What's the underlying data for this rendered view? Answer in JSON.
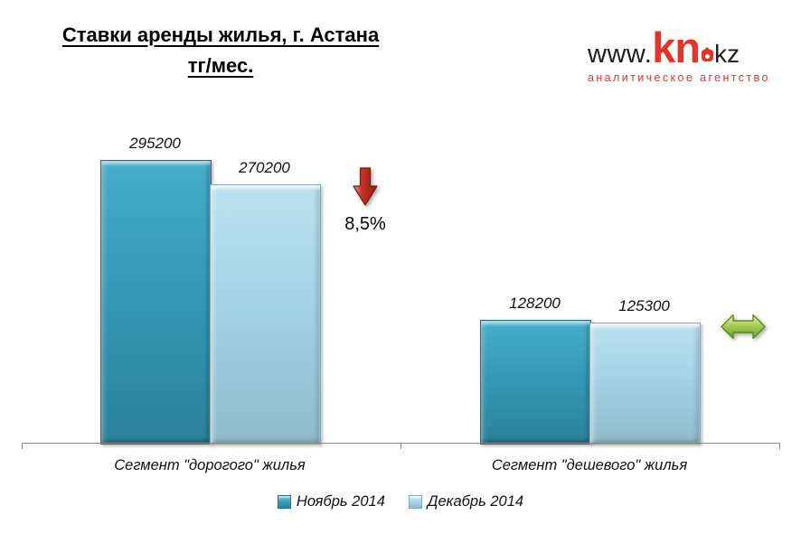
{
  "title": {
    "line1": "Ставки аренды жилья, г. Астана",
    "line2": "тг/мес."
  },
  "logo": {
    "www": "www.",
    "kn": "kn",
    "kz": "kz",
    "tagline": "аналитическое агентство",
    "brand_red": "#e0352b",
    "brand_dark": "#1d1d1b"
  },
  "annotations": {
    "expensive_segment_change": "8,5%",
    "expensive_segment_direction": "down",
    "cheap_segment_direction": "flat"
  },
  "colors": {
    "november_bar": "#3499b6",
    "december_bar": "#a3d3e6",
    "axis_line": "#898989",
    "down_arrow": "#b22318",
    "flat_arrow": "#8fbf3f"
  },
  "chart_data": {
    "type": "bar",
    "title": "Ставки аренды жилья, г. Астана тг/мес.",
    "categories": [
      "Сегмент \"дорогого\" жилья",
      "Сегмент \"дешевого\" жилья"
    ],
    "series": [
      {
        "name": "Ноябрь 2014",
        "color": "#3499b6",
        "values": [
          295200,
          128200
        ]
      },
      {
        "name": "Декабрь 2014",
        "color": "#a3d3e6",
        "values": [
          270200,
          125300
        ]
      }
    ],
    "ylabel": "тг/мес.",
    "ylim": [
      0,
      330000
    ],
    "grid": false,
    "legend_position": "bottom",
    "value_labels_shown": true
  }
}
